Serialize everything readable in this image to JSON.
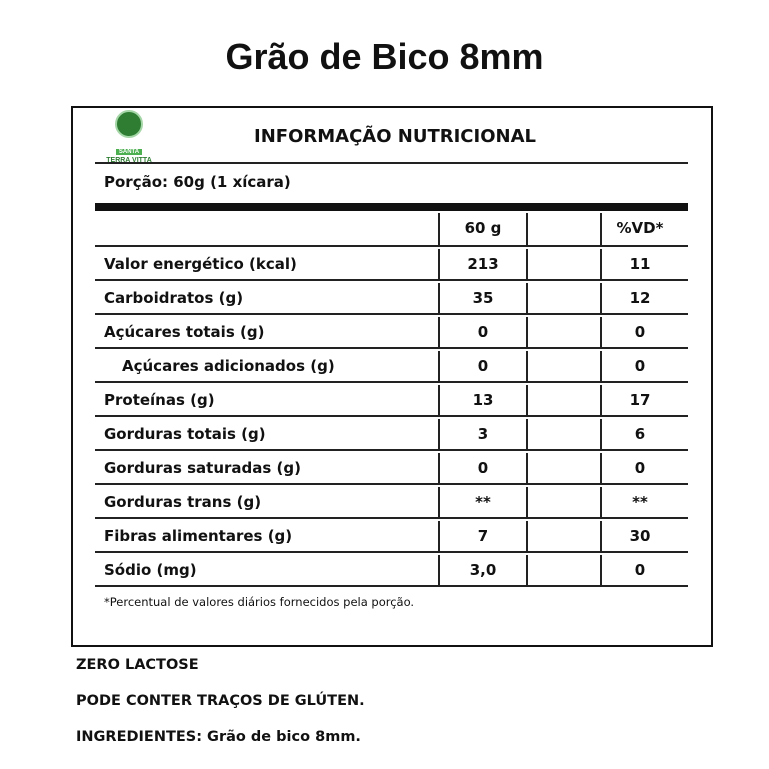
{
  "title": "Grão de Bico 8mm",
  "logo": {
    "text_top": "SANTA",
    "text_main": "TERRA VITTA"
  },
  "label": {
    "heading": "INFORMAÇÃO NUTRICIONAL",
    "portion": "Porção: 60g (1 xícara)",
    "columns": [
      "60 g",
      "",
      "%VD*"
    ],
    "rows": [
      {
        "name": "Valor energético (kcal)",
        "amount": "213",
        "vd": "11",
        "indent": false
      },
      {
        "name": "Carboidratos (g)",
        "amount": "35",
        "vd": "12",
        "indent": false
      },
      {
        "name": "Açúcares totais (g)",
        "amount": "0",
        "vd": "0",
        "indent": false
      },
      {
        "name": "Açúcares adicionados (g)",
        "amount": "0",
        "vd": "0",
        "indent": true
      },
      {
        "name": "Proteínas (g)",
        "amount": "13",
        "vd": "17",
        "indent": false
      },
      {
        "name": "Gorduras totais (g)",
        "amount": "3",
        "vd": "6",
        "indent": false
      },
      {
        "name": "Gorduras saturadas (g)",
        "amount": "0",
        "vd": "0",
        "indent": false
      },
      {
        "name": "Gorduras trans (g)",
        "amount": "**",
        "vd": "**",
        "indent": false
      },
      {
        "name": "Fibras alimentares (g)",
        "amount": "7",
        "vd": "30",
        "indent": false
      },
      {
        "name": "Sódio (mg)",
        "amount": "3,0",
        "vd": "0",
        "indent": false
      }
    ],
    "footnote": "*Percentual de valores diários fornecidos pela porção."
  },
  "notes": [
    "ZERO LACTOSE",
    "PODE CONTER TRAÇOS DE GLÚTEN.",
    "INGREDIENTES: Grão de bico 8mm."
  ]
}
